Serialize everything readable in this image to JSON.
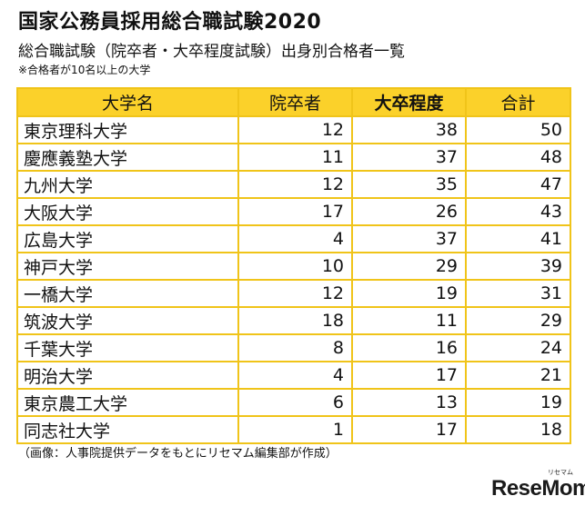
{
  "title": "国家公務員採用総合職試験2020",
  "subtitle": "総合職試験（院卒者・大卒程度試験）出身別合格者一覧",
  "note": "※合格者が10名以上の大学",
  "table": {
    "headers": [
      "大学名",
      "院卒者",
      "大卒程度",
      "合計"
    ],
    "rows": [
      {
        "name": "東京理科大学",
        "graduate": "12",
        "undergrad": "38",
        "total": "50"
      },
      {
        "name": "慶應義塾大学",
        "graduate": "11",
        "undergrad": "37",
        "total": "48"
      },
      {
        "name": "九州大学",
        "graduate": "12",
        "undergrad": "35",
        "total": "47"
      },
      {
        "name": "大阪大学",
        "graduate": "17",
        "undergrad": "26",
        "total": "43"
      },
      {
        "name": "広島大学",
        "graduate": "4",
        "undergrad": "37",
        "total": "41"
      },
      {
        "name": "神戸大学",
        "graduate": "10",
        "undergrad": "29",
        "total": "39"
      },
      {
        "name": "一橋大学",
        "graduate": "12",
        "undergrad": "19",
        "total": "31"
      },
      {
        "name": "筑波大学",
        "graduate": "18",
        "undergrad": "11",
        "total": "29"
      },
      {
        "name": "千葉大学",
        "graduate": "8",
        "undergrad": "16",
        "total": "24"
      },
      {
        "name": "明治大学",
        "graduate": "4",
        "undergrad": "17",
        "total": "21"
      },
      {
        "name": "東京農工大学",
        "graduate": "6",
        "undergrad": "13",
        "total": "19"
      },
      {
        "name": "同志社大学",
        "graduate": "1",
        "undergrad": "17",
        "total": "18"
      }
    ]
  },
  "source": "（画像：人事院提供データをもとにリセマム編集部が作成）",
  "logo": {
    "text": "ReseMom",
    "ruby": "リセマム"
  },
  "colors": {
    "header_bg": "#fbd12a",
    "border": "#f0c419"
  }
}
